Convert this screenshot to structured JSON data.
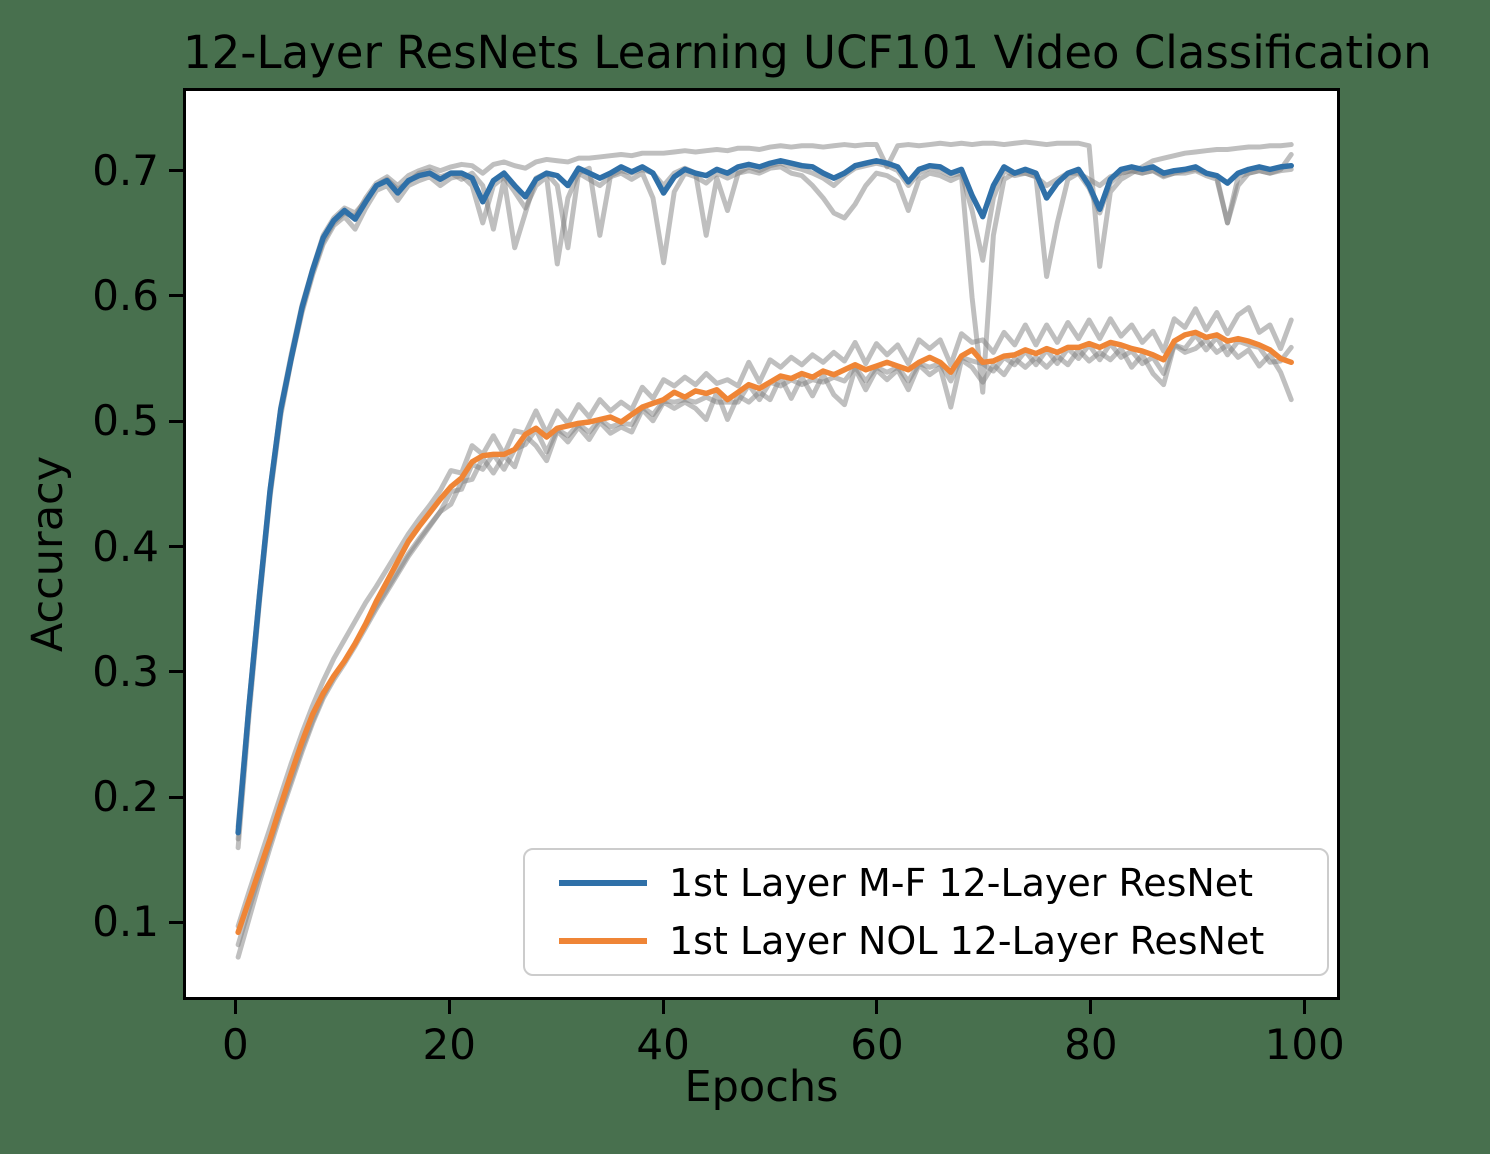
{
  "figure": {
    "background_color": "#48704e",
    "title": "12-Layer ResNets Learning UCF101 Video Classification"
  },
  "chart_data": {
    "type": "line",
    "title": "12-Layer ResNets Learning UCF101 Video Classification",
    "xlabel": "Epochs",
    "ylabel": "Accuracy",
    "xlim": [
      -4.9,
      103.3
    ],
    "ylim": [
      0.038,
      0.766
    ],
    "xticks": [
      0,
      20,
      40,
      60,
      80,
      100
    ],
    "yticks": [
      0.1,
      0.2,
      0.3,
      0.4,
      0.5,
      0.6,
      0.7
    ],
    "grid": false,
    "legend_position": "lower right inside axes",
    "x": [
      0,
      1,
      2,
      3,
      4,
      5,
      6,
      7,
      8,
      9,
      10,
      11,
      12,
      13,
      14,
      15,
      16,
      17,
      18,
      19,
      20,
      21,
      22,
      23,
      24,
      25,
      26,
      27,
      28,
      29,
      30,
      31,
      32,
      33,
      34,
      35,
      36,
      37,
      38,
      39,
      40,
      41,
      42,
      43,
      44,
      45,
      46,
      47,
      48,
      49,
      50,
      51,
      52,
      53,
      54,
      55,
      56,
      57,
      58,
      59,
      60,
      61,
      62,
      63,
      64,
      65,
      66,
      67,
      68,
      69,
      70,
      71,
      72,
      73,
      74,
      75,
      76,
      77,
      78,
      79,
      80,
      81,
      82,
      83,
      84,
      85,
      86,
      87,
      88,
      89,
      90,
      91,
      92,
      93,
      94,
      95,
      96,
      97,
      98,
      99
    ],
    "series": [
      {
        "name": "1st Layer M-F 12-Layer ResNet",
        "color": "#2f70a8",
        "values": [
          0.17,
          0.27,
          0.36,
          0.445,
          0.51,
          0.552,
          0.592,
          0.622,
          0.648,
          0.662,
          0.67,
          0.663,
          0.677,
          0.69,
          0.694,
          0.684,
          0.694,
          0.698,
          0.7,
          0.695,
          0.7,
          0.7,
          0.696,
          0.677,
          0.694,
          0.7,
          0.69,
          0.681,
          0.695,
          0.7,
          0.698,
          0.69,
          0.704,
          0.7,
          0.696,
          0.7,
          0.705,
          0.701,
          0.705,
          0.7,
          0.684,
          0.697,
          0.703,
          0.7,
          0.698,
          0.703,
          0.7,
          0.705,
          0.707,
          0.705,
          0.708,
          0.71,
          0.708,
          0.706,
          0.705,
          0.7,
          0.696,
          0.7,
          0.706,
          0.708,
          0.71,
          0.708,
          0.705,
          0.693,
          0.703,
          0.706,
          0.705,
          0.7,
          0.703,
          0.682,
          0.665,
          0.69,
          0.705,
          0.7,
          0.703,
          0.7,
          0.68,
          0.692,
          0.7,
          0.703,
          0.69,
          0.671,
          0.695,
          0.703,
          0.705,
          0.703,
          0.705,
          0.7,
          0.702,
          0.703,
          0.705,
          0.7,
          0.698,
          0.692,
          0.7,
          0.703,
          0.705,
          0.703,
          0.705,
          0.706
        ]
      },
      {
        "name": "1st Layer NOL 12-Layer ResNet",
        "color": "#ef8536",
        "values": [
          0.09,
          0.115,
          0.14,
          0.165,
          0.192,
          0.218,
          0.243,
          0.265,
          0.282,
          0.296,
          0.308,
          0.322,
          0.338,
          0.356,
          0.372,
          0.388,
          0.404,
          0.416,
          0.427,
          0.438,
          0.448,
          0.455,
          0.468,
          0.473,
          0.474,
          0.474,
          0.478,
          0.49,
          0.495,
          0.488,
          0.495,
          0.497,
          0.499,
          0.5,
          0.502,
          0.504,
          0.5,
          0.506,
          0.512,
          0.515,
          0.518,
          0.524,
          0.52,
          0.525,
          0.523,
          0.526,
          0.518,
          0.524,
          0.53,
          0.527,
          0.532,
          0.537,
          0.535,
          0.539,
          0.536,
          0.541,
          0.538,
          0.542,
          0.546,
          0.542,
          0.545,
          0.548,
          0.545,
          0.542,
          0.548,
          0.552,
          0.548,
          0.54,
          0.553,
          0.558,
          0.548,
          0.549,
          0.553,
          0.554,
          0.558,
          0.555,
          0.559,
          0.556,
          0.56,
          0.56,
          0.563,
          0.56,
          0.564,
          0.562,
          0.559,
          0.557,
          0.554,
          0.55,
          0.565,
          0.57,
          0.572,
          0.568,
          0.57,
          0.565,
          0.567,
          0.565,
          0.562,
          0.558,
          0.551,
          0.548
        ]
      }
    ],
    "background_runs": {
      "description": "individual training runs drawn in translucent gray behind the mean curves",
      "color": "#808080",
      "opacity": 0.5,
      "runs": [
        [
          0.158,
          0.262,
          0.355,
          0.44,
          0.505,
          0.55,
          0.59,
          0.62,
          0.645,
          0.66,
          0.668,
          0.665,
          0.68,
          0.692,
          0.697,
          0.69,
          0.698,
          0.702,
          0.705,
          0.702,
          0.705,
          0.707,
          0.706,
          0.7,
          0.707,
          0.709,
          0.706,
          0.704,
          0.709,
          0.711,
          0.71,
          0.709,
          0.712,
          0.712,
          0.713,
          0.714,
          0.715,
          0.714,
          0.716,
          0.716,
          0.716,
          0.717,
          0.718,
          0.717,
          0.718,
          0.719,
          0.718,
          0.72,
          0.72,
          0.719,
          0.721,
          0.722,
          0.721,
          0.722,
          0.722,
          0.721,
          0.722,
          0.723,
          0.722,
          0.723,
          0.723,
          0.705,
          0.722,
          0.723,
          0.722,
          0.723,
          0.724,
          0.723,
          0.724,
          0.723,
          0.724,
          0.724,
          0.723,
          0.724,
          0.725,
          0.724,
          0.723,
          0.724,
          0.724,
          0.724,
          0.722,
          0.625,
          0.685,
          0.695,
          0.7,
          0.705,
          0.71,
          0.712,
          0.714,
          0.716,
          0.717,
          0.718,
          0.719,
          0.719,
          0.72,
          0.721,
          0.721,
          0.722,
          0.722,
          0.723
        ],
        [
          0.165,
          0.268,
          0.358,
          0.442,
          0.508,
          0.55,
          0.588,
          0.618,
          0.643,
          0.658,
          0.665,
          0.655,
          0.672,
          0.686,
          0.69,
          0.678,
          0.69,
          0.694,
          0.697,
          0.69,
          0.696,
          0.698,
          0.69,
          0.66,
          0.69,
          0.697,
          0.685,
          0.672,
          0.69,
          0.697,
          0.627,
          0.68,
          0.7,
          0.695,
          0.69,
          0.697,
          0.7,
          0.695,
          0.7,
          0.68,
          0.628,
          0.685,
          0.7,
          0.697,
          0.692,
          0.7,
          0.696,
          0.7,
          0.702,
          0.7,
          0.704,
          0.705,
          0.7,
          0.698,
          0.69,
          0.68,
          0.668,
          0.664,
          0.675,
          0.69,
          0.7,
          0.698,
          0.693,
          0.67,
          0.695,
          0.7,
          0.698,
          0.694,
          0.698,
          0.6,
          0.524,
          0.65,
          0.695,
          0.7,
          0.7,
          0.697,
          0.69,
          0.695,
          0.7,
          0.7,
          0.695,
          0.69,
          0.697,
          0.7,
          0.702,
          0.7,
          0.702,
          0.698,
          0.7,
          0.702,
          0.703,
          0.7,
          0.697,
          0.66,
          0.69,
          0.7,
          0.702,
          0.7,
          0.702,
          0.703
        ],
        [
          0.175,
          0.272,
          0.362,
          0.446,
          0.512,
          0.555,
          0.594,
          0.623,
          0.65,
          0.664,
          0.672,
          0.668,
          0.678,
          0.69,
          0.695,
          0.687,
          0.693,
          0.7,
          0.702,
          0.697,
          0.7,
          0.695,
          0.7,
          0.69,
          0.655,
          0.695,
          0.64,
          0.668,
          0.696,
          0.7,
          0.69,
          0.64,
          0.7,
          0.704,
          0.65,
          0.698,
          0.702,
          0.7,
          0.703,
          0.7,
          0.69,
          0.7,
          0.704,
          0.7,
          0.65,
          0.696,
          0.67,
          0.7,
          0.705,
          0.702,
          0.706,
          0.708,
          0.705,
          0.703,
          0.7,
          0.696,
          0.69,
          0.698,
          0.704,
          0.706,
          0.708,
          0.706,
          0.702,
          0.69,
          0.7,
          0.704,
          0.702,
          0.698,
          0.7,
          0.67,
          0.63,
          0.68,
          0.702,
          0.698,
          0.7,
          0.697,
          0.617,
          0.66,
          0.695,
          0.7,
          0.688,
          0.668,
          0.692,
          0.7,
          0.702,
          0.7,
          0.702,
          0.697,
          0.7,
          0.7,
          0.702,
          0.698,
          0.695,
          0.66,
          0.697,
          0.7,
          0.702,
          0.7,
          0.703,
          0.715
        ],
        [
          0.095,
          0.122,
          0.148,
          0.174,
          0.2,
          0.226,
          0.25,
          0.272,
          0.292,
          0.31,
          0.325,
          0.34,
          0.355,
          0.368,
          0.382,
          0.396,
          0.41,
          0.422,
          0.433,
          0.445,
          0.461,
          0.459,
          0.481,
          0.474,
          0.489,
          0.474,
          0.493,
          0.491,
          0.509,
          0.491,
          0.509,
          0.499,
          0.514,
          0.504,
          0.518,
          0.509,
          0.516,
          0.51,
          0.528,
          0.519,
          0.534,
          0.529,
          0.536,
          0.53,
          0.539,
          0.531,
          0.534,
          0.529,
          0.548,
          0.532,
          0.55,
          0.544,
          0.552,
          0.546,
          0.554,
          0.548,
          0.556,
          0.549,
          0.564,
          0.547,
          0.563,
          0.554,
          0.562,
          0.547,
          0.566,
          0.559,
          0.566,
          0.546,
          0.571,
          0.564,
          0.566,
          0.556,
          0.572,
          0.562,
          0.578,
          0.562,
          0.578,
          0.564,
          0.58,
          0.567,
          0.582,
          0.567,
          0.583,
          0.569,
          0.578,
          0.564,
          0.573,
          0.557,
          0.583,
          0.576,
          0.591,
          0.574,
          0.588,
          0.571,
          0.586,
          0.592,
          0.572,
          0.578,
          0.559,
          0.582
        ],
        [
          0.08,
          0.108,
          0.135,
          0.162,
          0.188,
          0.213,
          0.238,
          0.26,
          0.28,
          0.295,
          0.308,
          0.322,
          0.337,
          0.352,
          0.366,
          0.38,
          0.394,
          0.406,
          0.417,
          0.428,
          0.434,
          0.452,
          0.454,
          0.471,
          0.459,
          0.473,
          0.464,
          0.489,
          0.481,
          0.469,
          0.493,
          0.484,
          0.496,
          0.486,
          0.5,
          0.491,
          0.496,
          0.492,
          0.51,
          0.501,
          0.516,
          0.511,
          0.516,
          0.511,
          0.502,
          0.524,
          0.502,
          0.521,
          0.516,
          0.524,
          0.518,
          0.536,
          0.519,
          0.536,
          0.521,
          0.538,
          0.522,
          0.514,
          0.543,
          0.526,
          0.542,
          0.534,
          0.542,
          0.526,
          0.546,
          0.538,
          0.544,
          0.512,
          0.55,
          0.544,
          0.532,
          0.546,
          0.538,
          0.551,
          0.544,
          0.552,
          0.544,
          0.553,
          0.546,
          0.558,
          0.549,
          0.556,
          0.55,
          0.559,
          0.544,
          0.554,
          0.539,
          0.53,
          0.562,
          0.556,
          0.559,
          0.566,
          0.556,
          0.562,
          0.552,
          0.558,
          0.545,
          0.554,
          0.54,
          0.518
        ],
        [
          0.07,
          0.1,
          0.13,
          0.158,
          0.185,
          0.21,
          0.235,
          0.258,
          0.278,
          0.293,
          0.306,
          0.32,
          0.335,
          0.35,
          0.364,
          0.378,
          0.392,
          0.404,
          0.416,
          0.428,
          0.444,
          0.446,
          0.466,
          0.462,
          0.474,
          0.462,
          0.478,
          0.482,
          0.494,
          0.476,
          0.494,
          0.489,
          0.498,
          0.492,
          0.502,
          0.496,
          0.499,
          0.498,
          0.512,
          0.506,
          0.517,
          0.516,
          0.518,
          0.516,
          0.52,
          0.516,
          0.516,
          0.516,
          0.53,
          0.518,
          0.532,
          0.529,
          0.534,
          0.53,
          0.534,
          0.532,
          0.536,
          0.533,
          0.544,
          0.533,
          0.544,
          0.54,
          0.544,
          0.533,
          0.547,
          0.544,
          0.547,
          0.533,
          0.552,
          0.549,
          0.547,
          0.541,
          0.552,
          0.546,
          0.557,
          0.546,
          0.558,
          0.547,
          0.559,
          0.551,
          0.562,
          0.55,
          0.563,
          0.552,
          0.557,
          0.547,
          0.552,
          0.539,
          0.562,
          0.559,
          0.57,
          0.558,
          0.568,
          0.554,
          0.565,
          0.562,
          0.56,
          0.548,
          0.549,
          0.56
        ]
      ]
    },
    "legend": {
      "border_color": "#cccccc",
      "background": "#ffffff",
      "entries": [
        {
          "label": "1st Layer M-F 12-Layer ResNet",
          "color": "#2f70a8"
        },
        {
          "label": "1st Layer NOL 12-Layer ResNet",
          "color": "#ef8536"
        }
      ]
    }
  }
}
